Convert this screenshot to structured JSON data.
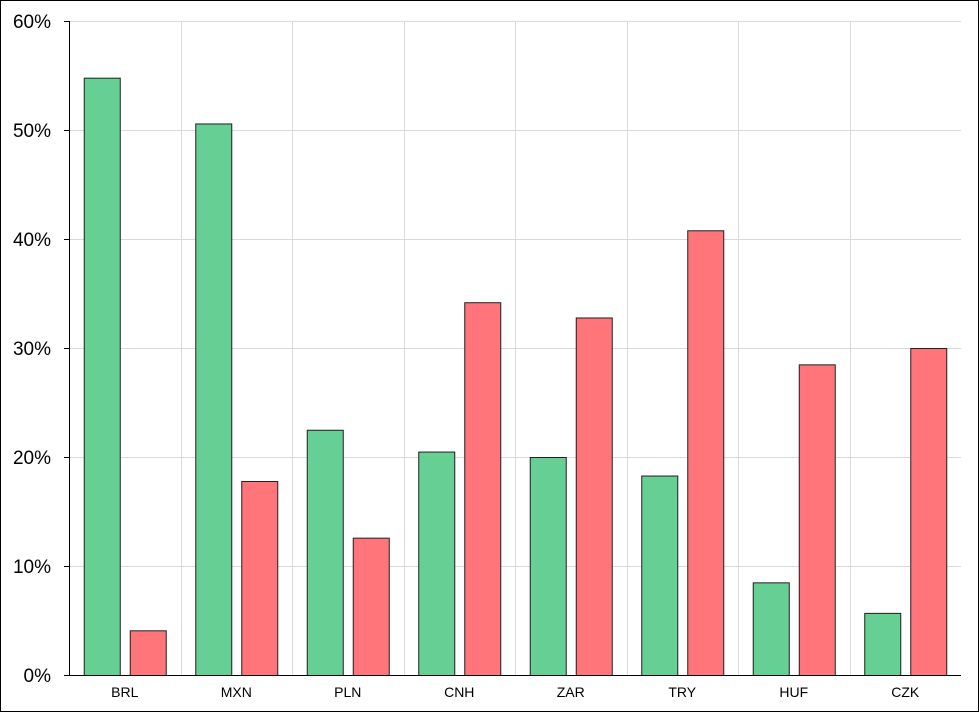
{
  "chart_data": {
    "type": "bar",
    "title": "",
    "xlabel": "",
    "ylabel": "",
    "categories": [
      "BRL",
      "MXN",
      "PLN",
      "CNH",
      "ZAR",
      "TRY",
      "HUF",
      "CZK"
    ],
    "series": [
      {
        "values": [
          54.8,
          50.6,
          22.5,
          20.5,
          20.0,
          18.3,
          8.5,
          5.7
        ],
        "color": "#66cf94"
      },
      {
        "values": [
          4.1,
          17.8,
          12.6,
          34.2,
          32.8,
          40.8,
          28.5,
          30.0
        ],
        "color": "#ff757a"
      }
    ],
    "ylim": [
      0,
      60
    ],
    "yticks": [
      0,
      10,
      20,
      30,
      40,
      50,
      60
    ],
    "ytick_labels": [
      "0%",
      "10%",
      "20%",
      "30%",
      "40%",
      "50%",
      "60%"
    ],
    "grid": true,
    "legend": "none"
  }
}
